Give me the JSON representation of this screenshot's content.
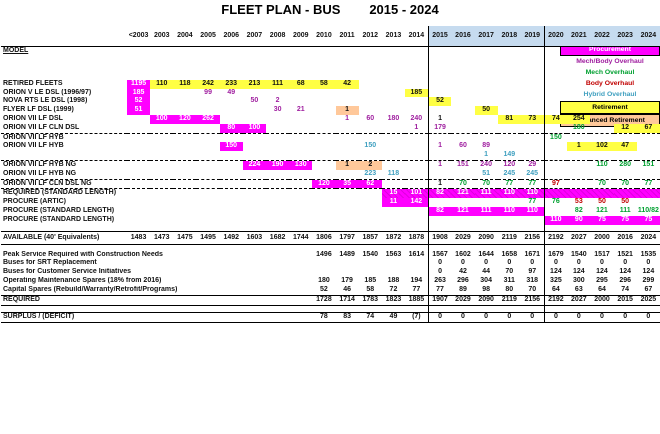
{
  "title": "FLEET PLAN - BUS        2015 - 2024",
  "model_label": "MODEL",
  "years": [
    "<2003",
    "2003",
    "2004",
    "2005",
    "2006",
    "2007",
    "2008",
    "2009",
    "2010",
    "2011",
    "2012",
    "2013",
    "2014",
    "2015",
    "2016",
    "2017",
    "2018",
    "2019",
    "2020",
    "2021",
    "2022",
    "2023",
    "2024"
  ],
  "legend": [
    "Procurement",
    "Mech/Body Overhaul",
    "Mech Overhaul",
    "Body Overhaul",
    "Hybrid Overhaul",
    "Retirement",
    "Advanced Retirement"
  ],
  "colors": {
    "procurement": "#ff00ff",
    "retirement": "#ffff44",
    "advanced_retirement": "#ffc89a",
    "forecast": "#c6dbef",
    "mech_overhaul": "#00a030",
    "body_overhaul": "#c00000",
    "hybrid_overhaul": "#40a0c0",
    "mech_body_overhaul": "#a020a0"
  },
  "top_rows": [
    {
      "label": "RETIRED FLEETS",
      "cells": [
        "1195",
        "110",
        "118",
        "242",
        "233",
        "213",
        "111",
        "68",
        "58",
        "42",
        "",
        "",
        "",
        "",
        "",
        "",
        "",
        "",
        "",
        "",
        "",
        "",
        ""
      ]
    },
    {
      "label": "ORION V LE DSL (1996/97)",
      "cells": [
        "185",
        "",
        "",
        "99",
        "49",
        "",
        "",
        "",
        "",
        "",
        "",
        "",
        "185",
        "",
        "",
        "",
        "",
        "",
        "",
        "",
        "",
        "",
        ""
      ]
    },
    {
      "label": "NOVA RTS LE DSL (1998)",
      "cells": [
        "52",
        "",
        "",
        "",
        "",
        "50",
        "2",
        "",
        "",
        "",
        "",
        "",
        "",
        "52",
        "",
        "",
        "",
        "",
        "",
        "",
        "",
        "",
        ""
      ]
    },
    {
      "label": "FLYER LF DSL (1999)",
      "cells": [
        "51",
        "",
        "",
        "",
        "",
        "",
        "30",
        "21",
        "",
        "1",
        "",
        "",
        "",
        "",
        "",
        "50",
        "",
        "",
        "",
        "",
        "",
        "",
        ""
      ]
    },
    {
      "label": "ORION VII LF DSL",
      "cells": [
        "",
        "100",
        "120",
        "262",
        "",
        "",
        "",
        "",
        "",
        "1",
        "60",
        "180",
        "240",
        "1",
        "",
        "",
        "81",
        "73",
        "74",
        "254",
        "",
        "",
        ""
      ]
    },
    {
      "label": "ORION VII LF CLN DSL",
      "cells": [
        "",
        "",
        "",
        "",
        "80",
        "100",
        "",
        "",
        "",
        "",
        "",
        "",
        "1",
        "179",
        "",
        "",
        "",
        "",
        "",
        "180",
        "",
        "12",
        "67"
      ]
    },
    {
      "label": "ORION VII LF HYB",
      "cells": [
        "",
        "",
        "",
        "",
        "",
        "",
        "",
        "",
        "",
        "",
        "",
        "",
        "",
        "",
        "",
        "",
        "",
        "",
        "150",
        "",
        "",
        "",
        ""
      ]
    },
    {
      "label": "ORION VII LF HYB",
      "cells": [
        "",
        "",
        "",
        "",
        "150",
        "",
        "",
        "",
        "",
        "",
        "150",
        "",
        "",
        "1",
        "60",
        "89",
        "",
        "",
        "",
        "1",
        "102",
        "47",
        ""
      ]
    },
    {
      "label": "",
      "cells": [
        "",
        "",
        "",
        "",
        "",
        "",
        "",
        "",
        "",
        "",
        "",
        "",
        "",
        "",
        "",
        "1",
        "149",
        "",
        "",
        "",
        "",
        "",
        ""
      ]
    },
    {
      "label": "ORION VII LF HYB NG",
      "cells": [
        "",
        "",
        "",
        "",
        "",
        "224",
        "190",
        "130",
        "",
        "1",
        "2",
        "",
        "",
        "1",
        "151",
        "240",
        "120",
        "29",
        "",
        "",
        "110",
        "280",
        "151"
      ]
    },
    {
      "label": "ORION VII LF HYB NG",
      "cells": [
        "",
        "",
        "",
        "",
        "",
        "",
        "",
        "",
        "",
        "",
        "223",
        "118",
        "",
        "",
        "",
        "51",
        "245",
        "245",
        "",
        "",
        "",
        "",
        ""
      ]
    },
    {
      "label": "ORION VII LF CLN DSL NG",
      "cells": [
        "",
        "",
        "",
        "",
        "",
        "",
        "",
        "",
        "120",
        "35",
        "62",
        "",
        "",
        "1",
        "70",
        "70",
        "77",
        "77",
        "97",
        "",
        "70",
        "70",
        "77"
      ]
    },
    {
      "label": "REQUIRED (STANDARD LENGTH)",
      "cells": [
        "",
        "",
        "",
        "",
        "",
        "",
        "",
        "",
        "",
        "",
        "",
        "15",
        "101",
        "82",
        "121",
        "111",
        "110",
        "110",
        "",
        "",
        "",
        "",
        ""
      ]
    },
    {
      "label": "PROCURE (ARTIC)",
      "cells": [
        "",
        "",
        "",
        "",
        "",
        "",
        "",
        "",
        "",
        "",
        "",
        "11",
        "142",
        "",
        "",
        "",
        "",
        "77",
        "76",
        "53",
        "50",
        "50",
        ""
      ]
    },
    {
      "label": "PROCURE (STANDARD LENGTH)",
      "cells": [
        "",
        "",
        "",
        "",
        "",
        "",
        "",
        "",
        "",
        "",
        "",
        "",
        "",
        "82",
        "121",
        "111",
        "110",
        "110",
        "",
        "82",
        "121",
        "111",
        "110/82"
      ]
    },
    {
      "label": "PROCURE (STANDARD LENGTH)",
      "cells": [
        "",
        "",
        "",
        "",
        "",
        "",
        "",
        "",
        "",
        "",
        "",
        "",
        "",
        "",
        "",
        "",
        "",
        "",
        "110",
        "90",
        "75",
        "75",
        "75"
      ]
    }
  ],
  "available": {
    "label": "AVAILABLE (40' Equivalents)",
    "cells": [
      "1483",
      "1473",
      "1475",
      "1495",
      "1492",
      "1603",
      "1682",
      "1744",
      "1806",
      "1797",
      "1857",
      "1872",
      "1878",
      "1908",
      "2029",
      "2090",
      "2119",
      "2156",
      "2192",
      "2027",
      "2000",
      "2016",
      "2024"
    ]
  },
  "bottom_rows": [
    {
      "label": "Peak Service Required with Construction Needs",
      "cells": [
        "1496",
        "1489",
        "1540",
        "1563",
        "1614",
        "1567",
        "1602",
        "1644",
        "1658",
        "1671",
        "1679",
        "1540",
        "1517",
        "1521",
        "1535"
      ]
    },
    {
      "label": "Buses for SRT Replacement",
      "cells": [
        "",
        "",
        "",
        "",
        "",
        "0",
        "0",
        "0",
        "0",
        "0",
        "0",
        "0",
        "0",
        "0",
        "0"
      ]
    },
    {
      "label": "Buses for Customer Service Initiatives",
      "cells": [
        "",
        "",
        "",
        "",
        "",
        "0",
        "42",
        "44",
        "70",
        "97",
        "124",
        "124",
        "124",
        "124",
        "124"
      ]
    },
    {
      "label": "Operating Maintenance Spares (18% from 2016)",
      "cells": [
        "180",
        "179",
        "185",
        "188",
        "194",
        "263",
        "296",
        "304",
        "311",
        "318",
        "325",
        "300",
        "295",
        "296",
        "299"
      ]
    },
    {
      "label": "Capital Spares (Rebuild/Warranty/Retrofit/Programs)",
      "cells": [
        "52",
        "46",
        "58",
        "72",
        "77",
        "77",
        "89",
        "98",
        "80",
        "70",
        "64",
        "63",
        "64",
        "74",
        "67"
      ]
    },
    {
      "label": "REQUIRED",
      "cells": [
        "1728",
        "1714",
        "1783",
        "1823",
        "1885",
        "1907",
        "2029",
        "2090",
        "2119",
        "2156",
        "2192",
        "2027",
        "2000",
        "2015",
        "2025"
      ]
    }
  ],
  "surplus": {
    "label": "SURPLUS / (DEFICIT)",
    "cells": [
      "78",
      "83",
      "74",
      "49",
      "(7)",
      "0",
      "0",
      "0",
      "0",
      "0",
      "0",
      "0",
      "0",
      "0",
      "0"
    ]
  }
}
